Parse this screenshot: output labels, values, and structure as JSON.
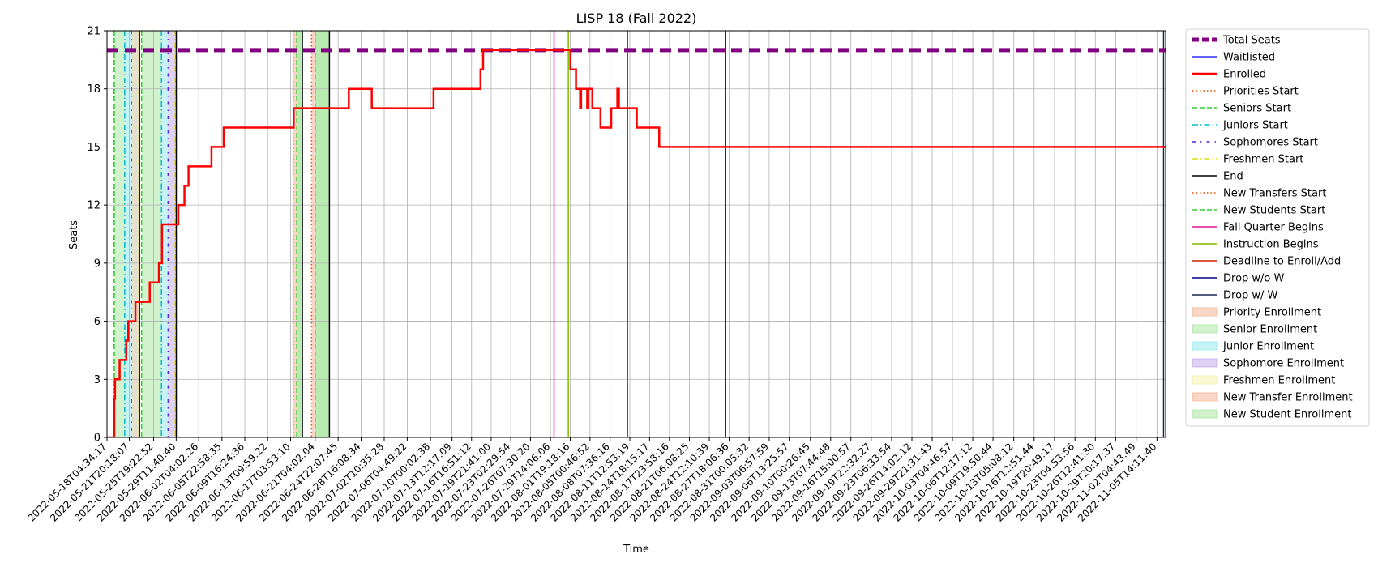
{
  "chart_data": {
    "type": "line",
    "title": "LISP 18 (Fall 2022)",
    "xlabel": "Time",
    "ylabel": "Seats",
    "ylim": [
      0,
      21
    ],
    "yticks": [
      0,
      3,
      6,
      9,
      12,
      15,
      18,
      21
    ],
    "xlim": [
      "2022-05-18T04:34:17",
      "2022-11-07T00:00:00"
    ],
    "grid": true,
    "legend_position": "outside-right",
    "x_tick_labels": [
      "2022-05-18T04:34:17",
      "2022-05-21T20:18:07",
      "2022-05-25T19:22:52",
      "2022-05-29T11:40:40",
      "2022-06-02T04:02:26",
      "2022-06-05T22:58:35",
      "2022-06-09T16:24:36",
      "2022-06-13T09:59:22",
      "2022-06-17T03:53:10",
      "2022-06-21T04:02:04",
      "2022-06-24T22:07:45",
      "2022-06-28T16:08:34",
      "2022-07-02T10:35:28",
      "2022-07-06T04:49:22",
      "2022-07-10T00:02:38",
      "2022-07-13T12:17:09",
      "2022-07-16T16:51:12",
      "2022-07-19T21:41:00",
      "2022-07-23T02:29:54",
      "2022-07-26T07:30:20",
      "2022-07-29T14:06:06",
      "2022-08-01T19:18:16",
      "2022-08-05T00:46:52",
      "2022-08-08T07:36:16",
      "2022-08-11T12:53:19",
      "2022-08-14T18:15:17",
      "2022-08-17T23:58:16",
      "2022-08-21T06:08:25",
      "2022-08-24T12:10:39",
      "2022-08-27T18:06:36",
      "2022-08-31T00:05:32",
      "2022-09-03T06:57:59",
      "2022-09-06T13:25:57",
      "2022-09-10T00:26:45",
      "2022-09-13T07:44:48",
      "2022-09-16T15:00:57",
      "2022-09-19T22:32:27",
      "2022-09-23T06:33:54",
      "2022-09-26T14:02:12",
      "2022-09-29T21:31:43",
      "2022-10-03T04:46:57",
      "2022-10-06T12:17:12",
      "2022-10-09T19:50:44",
      "2022-10-13T05:08:12",
      "2022-10-16T12:51:44",
      "2022-10-19T20:49:17",
      "2022-10-23T04:53:56",
      "2022-10-26T12:41:30",
      "2022-10-29T20:17:37",
      "2022-11-02T04:43:49",
      "2022-11-05T14:11:40"
    ],
    "series": [
      {
        "name": "Total Seats",
        "color": "#800080",
        "style": "dashed-thick",
        "points": [
          [
            "2022-05-18T04:34:17",
            20
          ],
          [
            "2022-11-07T00:00:00",
            20
          ]
        ]
      },
      {
        "name": "Waitlisted",
        "color": "#0000ff",
        "style": "solid-thin",
        "points": [
          [
            "2022-05-18T04:34:17",
            0
          ],
          [
            "2022-11-07T00:00:00",
            0
          ]
        ]
      },
      {
        "name": "Enrolled",
        "color": "#ff0000",
        "style": "step",
        "points": [
          [
            "2022-05-18T04:34:17",
            0
          ],
          [
            "2022-05-19T09:00:00",
            2
          ],
          [
            "2022-05-19T12:00:00",
            3
          ],
          [
            "2022-05-20T06:00:00",
            4
          ],
          [
            "2022-05-21T08:00:00",
            5
          ],
          [
            "2022-05-21T16:00:00",
            6
          ],
          [
            "2022-05-22T20:00:00",
            7
          ],
          [
            "2022-05-25T04:00:00",
            8
          ],
          [
            "2022-05-26T16:00:00",
            9
          ],
          [
            "2022-05-27T04:00:00",
            11
          ],
          [
            "2022-05-29T20:00:00",
            12
          ],
          [
            "2022-05-30T20:00:00",
            13
          ],
          [
            "2022-05-31T12:00:00",
            14
          ],
          [
            "2022-06-04T06:00:00",
            15
          ],
          [
            "2022-06-06T06:00:00",
            16
          ],
          [
            "2022-06-17T16:00:00",
            17
          ],
          [
            "2022-06-26T16:00:00",
            18
          ],
          [
            "2022-06-30T10:00:00",
            17
          ],
          [
            "2022-07-10T12:00:00",
            18
          ],
          [
            "2022-07-18T04:00:00",
            19
          ],
          [
            "2022-07-18T14:00:00",
            20
          ],
          [
            "2022-08-01T20:00:00",
            19
          ],
          [
            "2022-08-02T18:00:00",
            18
          ],
          [
            "2022-08-03T10:00:00",
            17
          ],
          [
            "2022-08-03T14:00:00",
            18
          ],
          [
            "2022-08-04T14:00:00",
            17
          ],
          [
            "2022-08-04T18:00:00",
            18
          ],
          [
            "2022-08-05T10:00:00",
            17
          ],
          [
            "2022-08-06T18:00:00",
            16
          ],
          [
            "2022-08-08T12:00:00",
            17
          ],
          [
            "2022-08-09T12:00:00",
            18
          ],
          [
            "2022-08-09T18:00:00",
            17
          ],
          [
            "2022-08-12T16:00:00",
            16
          ],
          [
            "2022-08-16T08:00:00",
            15
          ],
          [
            "2022-11-07T00:00:00",
            15
          ]
        ]
      }
    ],
    "vertical_markers": [
      {
        "name": "Priorities Start",
        "color": "#ff4500",
        "style": "dotted",
        "x": [
          "2022-05-19T08:00:00",
          "2022-06-17T14:00:00",
          "2022-06-20T14:00:00"
        ]
      },
      {
        "name": "Seniors Start",
        "color": "#33cc33",
        "style": "dashed",
        "x": [
          "2022-05-19T09:00:00",
          "2022-05-23T20:00:00",
          "2022-06-18T04:00:00",
          "2022-06-21T04:00:00"
        ]
      },
      {
        "name": "Juniors Start",
        "color": "#00bcd4",
        "style": "dashdot",
        "x": [
          "2022-05-21T02:00:00",
          "2022-05-27T02:00:00"
        ]
      },
      {
        "name": "Sophomores Start",
        "color": "#5522dd",
        "style": "dashdot-dense",
        "x": [
          "2022-05-22T04:00:00",
          "2022-05-28T04:00:00"
        ]
      },
      {
        "name": "Freshmen Start",
        "color": "#dddd00",
        "style": "dashdot",
        "x": [
          "2022-05-23T10:00:00",
          "2022-05-29T08:00:00"
        ]
      },
      {
        "name": "End",
        "color": "#000000",
        "style": "solid",
        "x": [
          "2022-05-23T12:00:00",
          "2022-05-29T12:00:00",
          "2022-06-19T02:00:00",
          "2022-06-23T12:00:00"
        ]
      },
      {
        "name": "New Transfers Start",
        "color": "#ff4500",
        "style": "dotted",
        "x": []
      },
      {
        "name": "New Students Start",
        "color": "#33cc33",
        "style": "dashed",
        "x": []
      },
      {
        "name": "Fall Quarter Begins",
        "color": "#e0109a",
        "style": "solid",
        "x": [
          "2022-07-30T04:00:00"
        ]
      },
      {
        "name": "Instruction Begins",
        "color": "#7fba00",
        "style": "solid",
        "x": [
          "2022-08-01T12:00:00"
        ]
      },
      {
        "name": "Deadline to Enroll/Add",
        "color": "#cc2200",
        "style": "solid",
        "x": [
          "2022-08-11T04:00:00"
        ]
      },
      {
        "name": "Drop w/o W",
        "color": "#00008b",
        "style": "solid",
        "x": [
          "2022-08-27T04:00:00"
        ]
      },
      {
        "name": "Drop w/ W",
        "color": "#1a2a4f",
        "style": "solid",
        "x": [
          "2022-11-06T16:00:00"
        ]
      }
    ],
    "shaded_periods": [
      {
        "name": "Priority Enrollment",
        "color": "#f4a582",
        "ranges": []
      },
      {
        "name": "Senior Enrollment",
        "color": "#98e38f",
        "ranges": [
          [
            "2022-05-19T09:00:00",
            "2022-05-21T02:00:00"
          ],
          [
            "2022-05-23T20:00:00",
            "2022-05-27T02:00:00"
          ],
          [
            "2022-06-18T04:00:00",
            "2022-06-19T02:00:00"
          ],
          [
            "2022-06-21T04:00:00",
            "2022-06-23T12:00:00"
          ]
        ]
      },
      {
        "name": "Junior Enrollment",
        "color": "#7fe5ea",
        "ranges": [
          [
            "2022-05-21T02:00:00",
            "2022-05-22T04:00:00"
          ],
          [
            "2022-05-27T02:00:00",
            "2022-05-28T04:00:00"
          ]
        ]
      },
      {
        "name": "Sophomore Enrollment",
        "color": "#b99ae8",
        "ranges": [
          [
            "2022-05-22T04:00:00",
            "2022-05-23T10:00:00"
          ],
          [
            "2022-05-28T04:00:00",
            "2022-05-29T08:00:00"
          ]
        ]
      },
      {
        "name": "Freshmen Enrollment",
        "color": "#f0f0a0",
        "ranges": [
          [
            "2022-05-22T04:00:00",
            "2022-05-23T12:00:00"
          ],
          [
            "2022-05-29T08:00:00",
            "2022-05-29T12:00:00"
          ]
        ]
      },
      {
        "name": "New Transfer Enrollment",
        "color": "#f4a582",
        "ranges": [
          [
            "2022-06-17T14:00:00",
            "2022-06-18T04:00:00"
          ],
          [
            "2022-06-20T14:00:00",
            "2022-06-21T04:00:00"
          ]
        ]
      },
      {
        "name": "New Student Enrollment",
        "color": "#98e38f",
        "ranges": [
          [
            "2022-06-18T04:00:00",
            "2022-06-19T02:00:00"
          ],
          [
            "2022-06-21T04:00:00",
            "2022-06-23T12:00:00"
          ]
        ]
      }
    ],
    "legend": [
      {
        "label": "Total Seats",
        "kind": "line",
        "color": "#800080",
        "dash": "8,4",
        "width": 5
      },
      {
        "label": "Waitlisted",
        "kind": "line",
        "color": "#0000ff",
        "dash": "",
        "width": 1.2
      },
      {
        "label": "Enrolled",
        "kind": "line",
        "color": "#ff0000",
        "dash": "",
        "width": 2.5
      },
      {
        "label": "Priorities Start",
        "kind": "line",
        "color": "#ff4500",
        "dash": "1.5,3",
        "width": 1.5
      },
      {
        "label": "Seniors Start",
        "kind": "line",
        "color": "#33cc33",
        "dash": "6,3",
        "width": 1.5
      },
      {
        "label": "Juniors Start",
        "kind": "line",
        "color": "#00bcd4",
        "dash": "7,3,1.5,3",
        "width": 1.5
      },
      {
        "label": "Sophomores Start",
        "kind": "line",
        "color": "#5522dd",
        "dash": "4,6,1.5,6",
        "width": 1.5
      },
      {
        "label": "Freshmen Start",
        "kind": "line",
        "color": "#dddd00",
        "dash": "7,3,1.5,3",
        "width": 1.5
      },
      {
        "label": "End",
        "kind": "line",
        "color": "#000000",
        "dash": "",
        "width": 1.5
      },
      {
        "label": "New Transfers Start",
        "kind": "line",
        "color": "#ff4500",
        "dash": "1.5,3",
        "width": 1.5
      },
      {
        "label": "New Students Start",
        "kind": "line",
        "color": "#33cc33",
        "dash": "6,3",
        "width": 1.5
      },
      {
        "label": "Fall Quarter Begins",
        "kind": "line",
        "color": "#e0109a",
        "dash": "",
        "width": 1.5
      },
      {
        "label": "Instruction Begins",
        "kind": "line",
        "color": "#7fba00",
        "dash": "",
        "width": 1.5
      },
      {
        "label": "Deadline to Enroll/Add",
        "kind": "line",
        "color": "#cc2200",
        "dash": "",
        "width": 1.5
      },
      {
        "label": "Drop w/o W",
        "kind": "line",
        "color": "#00008b",
        "dash": "",
        "width": 1.5
      },
      {
        "label": "Drop w/ W",
        "kind": "line",
        "color": "#1a2a4f",
        "dash": "",
        "width": 1.5
      },
      {
        "label": "Priority Enrollment",
        "kind": "patch",
        "color": "#f4a582"
      },
      {
        "label": "Senior Enrollment",
        "kind": "patch",
        "color": "#98e38f"
      },
      {
        "label": "Junior Enrollment",
        "kind": "patch",
        "color": "#7fe5ea"
      },
      {
        "label": "Sophomore Enrollment",
        "kind": "patch",
        "color": "#b99ae8"
      },
      {
        "label": "Freshmen Enrollment",
        "kind": "patch",
        "color": "#f0f0a0"
      },
      {
        "label": "New Transfer Enrollment",
        "kind": "patch",
        "color": "#f4a582"
      },
      {
        "label": "New Student Enrollment",
        "kind": "patch",
        "color": "#98e38f"
      }
    ]
  }
}
